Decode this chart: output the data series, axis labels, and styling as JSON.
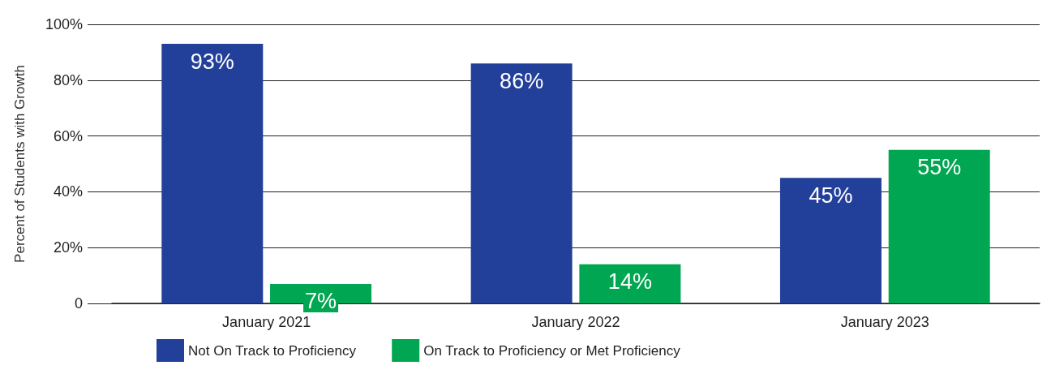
{
  "chart_data": {
    "type": "bar",
    "ylabel": "Percent of Students with Growth",
    "categories": [
      "January 2021",
      "January 2022",
      "January 2023"
    ],
    "series": [
      {
        "name": "Not On Track to Proficiency",
        "color": "#22409a",
        "values": [
          93,
          86,
          45
        ],
        "value_labels": [
          "93%",
          "86%",
          "45%"
        ]
      },
      {
        "name": "On Track to Proficiency or Met Proficiency",
        "color": "#00a651",
        "values": [
          7,
          14,
          55
        ],
        "value_labels": [
          "7%",
          "14%",
          "55%"
        ]
      }
    ],
    "ylim": [
      0,
      100
    ],
    "yticks": [
      0,
      {
        "value": 20,
        "label": "20%"
      },
      {
        "value": 40,
        "label": "40%"
      },
      {
        "value": 60,
        "label": "60%"
      },
      {
        "value": 80,
        "label": "80%"
      },
      {
        "value": 100,
        "label": "100%"
      }
    ],
    "grid": "y",
    "legend": "bottom"
  }
}
